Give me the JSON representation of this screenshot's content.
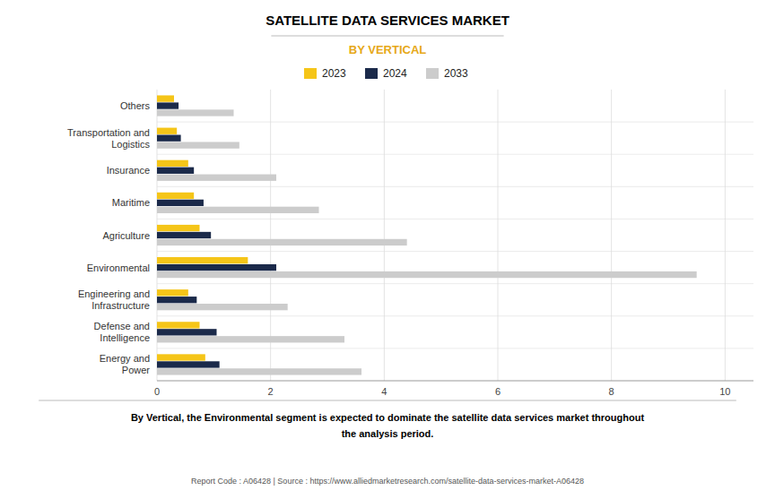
{
  "chart_data": {
    "type": "bar",
    "orientation": "horizontal",
    "title": "SATELLITE DATA SERVICES MARKET",
    "subtitle": "BY VERTICAL",
    "categories": [
      "Energy and\nPower",
      "Defense and\nIntelligence",
      "Engineering and\nInfrastructure",
      "Environmental",
      "Agriculture",
      "Maritime",
      "Insurance",
      "Transportation and\nLogistics",
      "Others"
    ],
    "series": [
      {
        "name": "2023",
        "color": "#F5C518",
        "values": [
          0.85,
          0.75,
          0.55,
          1.6,
          0.75,
          0.65,
          0.55,
          0.35,
          0.3
        ]
      },
      {
        "name": "2024",
        "color": "#1B2A4A",
        "values": [
          1.1,
          1.05,
          0.7,
          2.1,
          0.95,
          0.82,
          0.65,
          0.42,
          0.38
        ]
      },
      {
        "name": "2033",
        "color": "#CCCCCC",
        "values": [
          3.6,
          3.3,
          2.3,
          9.5,
          4.4,
          2.85,
          2.1,
          1.45,
          1.35
        ]
      }
    ],
    "xlim": [
      0,
      10.5
    ],
    "xticks": [
      0,
      2,
      4,
      6,
      8,
      10
    ],
    "grid": true,
    "legend": "top",
    "annotations": [
      "By Vertical, the Environmental segment is expected to dominate the satellite data services market throughout\nthe analysis period.",
      "Report Code : A06428  |  Source : https://www.alliedmarketresearch.com/satellite-data-services-market-A06428"
    ]
  }
}
